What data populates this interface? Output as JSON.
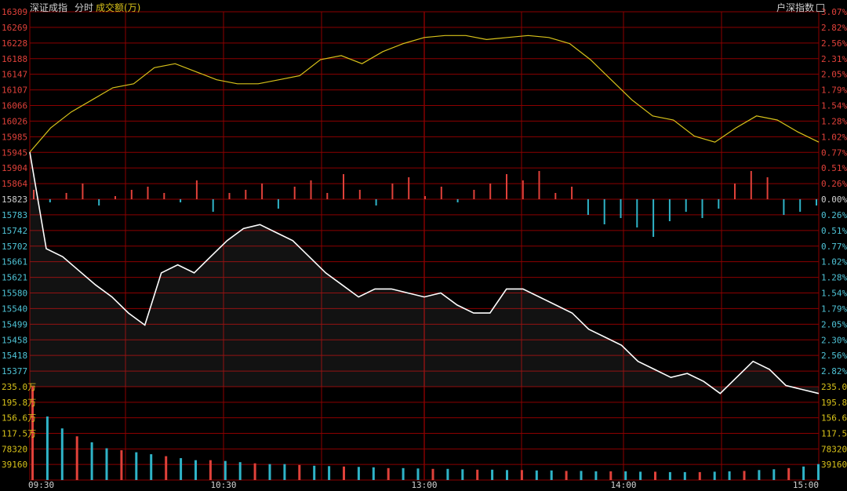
{
  "header": {
    "index_name": "深证成指",
    "tab_intraday": "分时",
    "volume_label": "成交额(万)",
    "switch_label": "户深指数"
  },
  "colors": {
    "grid": "#8b0000",
    "up": "#e0413a",
    "down": "#2fb3c7",
    "price_line": "#ffffff",
    "avg_line": "#d8c21a",
    "axis_text_up": "#e0413a",
    "axis_text_down": "#4fc3d6",
    "axis_text_neutral": "#d0d0d0",
    "vol_text": "#d8c21a"
  },
  "price_axis": {
    "left_up": [
      "16309",
      "16269",
      "16228",
      "16188",
      "16147",
      "16107",
      "16066",
      "16026",
      "15985",
      "15945",
      "15904",
      "15864"
    ],
    "mid": "15823",
    "left_down": [
      "15783",
      "15742",
      "15702",
      "15661",
      "15621",
      "15580",
      "15540",
      "15499",
      "15458",
      "15418",
      "15377"
    ],
    "right_up": [
      "3.07%",
      "2.82%",
      "2.56%",
      "2.31%",
      "2.05%",
      "1.79%",
      "1.54%",
      "1.28%",
      "1.02%",
      "0.77%",
      "0.51%",
      "0.26%"
    ],
    "right_mid": "0.00%",
    "right_down": [
      "0.26%",
      "0.51%",
      "0.77%",
      "1.02%",
      "1.28%",
      "1.54%",
      "1.79%",
      "2.05%",
      "2.30%",
      "2.56%",
      "2.82%"
    ]
  },
  "volume_axis": {
    "left": [
      "235.0万",
      "195.8万",
      "156.6万",
      "117.5万",
      "78320",
      "39160"
    ],
    "right": [
      "235.0",
      "195.8",
      "156.6",
      "117.5",
      "78320",
      "39160"
    ]
  },
  "time_axis": [
    "09:30",
    "10:30",
    "13:00",
    "14:00",
    "15:00"
  ],
  "chart_data": [
    {
      "type": "line",
      "series": [
        {
          "values": [
            15960,
            15720,
            15700,
            15665,
            15630,
            15600,
            15560,
            15530,
            15660,
            15680,
            15660,
            15700,
            15740,
            15770,
            15780,
            15760,
            15740,
            15700,
            15660,
            15630,
            15600,
            15620,
            15620,
            15610,
            15600,
            15610,
            15580,
            15560,
            15560,
            15620,
            15620,
            15600,
            15580,
            15560,
            15520,
            15500,
            15480,
            15440,
            15420,
            15400,
            15410,
            15390,
            15360,
            15400,
            15440,
            15420,
            15380,
            15370,
            15360
          ]
        },
        {
          "values": [
            15960,
            16020,
            16060,
            16090,
            16120,
            16130,
            16170,
            16180,
            16160,
            16140,
            16130,
            16130,
            16140,
            16150,
            16190,
            16200,
            16180,
            16210,
            16230,
            16245,
            16250,
            16250,
            16240,
            16245,
            16250,
            16245,
            16230,
            16190,
            16140,
            16090,
            16050,
            16040,
            16000,
            15985,
            16020,
            16050,
            16040,
            16010,
            15985
          ]
        }
      ],
      "ylim": [
        15377,
        16309
      ]
    },
    {
      "type": "bar",
      "values": [
        0.3,
        -0.1,
        0.2,
        0.5,
        -0.2,
        0.1,
        0.3,
        0.4,
        0.2,
        -0.1,
        0.6,
        -0.4,
        0.2,
        0.3,
        0.5,
        -0.3,
        0.4,
        0.6,
        0.2,
        0.8,
        0.3,
        -0.2,
        0.5,
        0.7,
        0.1,
        0.4,
        -0.1,
        0.3,
        0.5,
        0.8,
        0.6,
        0.9,
        0.2,
        0.4,
        -0.5,
        -0.8,
        -0.6,
        -0.9,
        -1.2,
        -0.7,
        -0.4,
        -0.6,
        -0.3,
        0.5,
        0.9,
        0.7,
        -0.5,
        -0.4,
        -0.2
      ],
      "ylim": [
        -1.5,
        1.5
      ]
    },
    {
      "type": "bar",
      "values": [
        235.0,
        160,
        130,
        110,
        95,
        80,
        75,
        70,
        65,
        60,
        55,
        50,
        50,
        48,
        45,
        42,
        40,
        40,
        38,
        36,
        35,
        34,
        33,
        32,
        30,
        30,
        29,
        28,
        28,
        27,
        26,
        26,
        25,
        25,
        24,
        24,
        23,
        23,
        22,
        22,
        22,
        21,
        21,
        20,
        20,
        20,
        21,
        22,
        23,
        25,
        27,
        30,
        34,
        40
      ],
      "ylim": [
        0,
        235.0
      ]
    }
  ]
}
